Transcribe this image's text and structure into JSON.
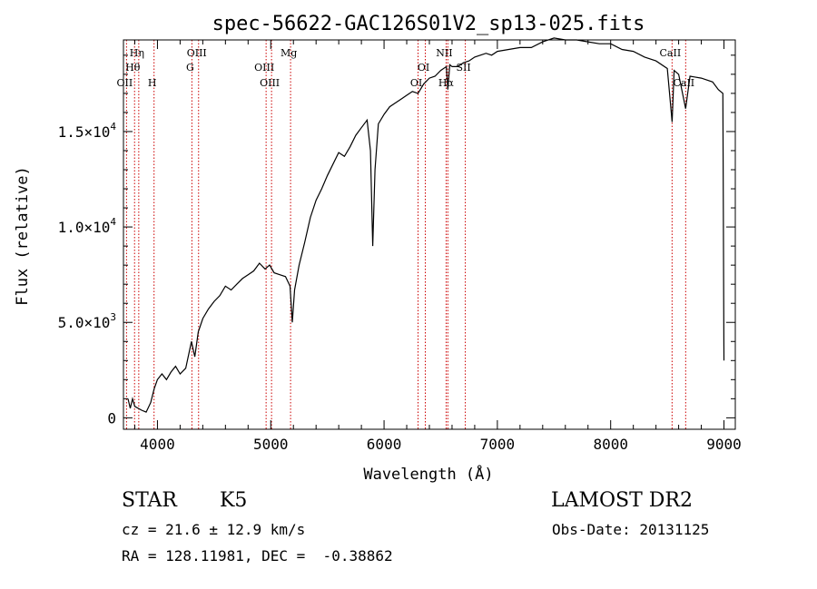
{
  "chart_data": {
    "type": "line",
    "title": "spec-56622-GAC126S01V2_sp13-025.fits",
    "xlabel": "Wavelength (Å)",
    "ylabel": "Flux (relative)",
    "xlim": [
      3700,
      9100
    ],
    "ylim": [
      -600,
      19800
    ],
    "x_ticks": [
      {
        "value": 4000,
        "label": "4000"
      },
      {
        "value": 5000,
        "label": "5000"
      },
      {
        "value": 6000,
        "label": "6000"
      },
      {
        "value": 7000,
        "label": "7000"
      },
      {
        "value": 8000,
        "label": "8000"
      },
      {
        "value": 9000,
        "label": "9000"
      }
    ],
    "y_ticks": [
      {
        "value": 0,
        "mantissa": "0",
        "exponent": ""
      },
      {
        "value": 5000,
        "mantissa": "5.0×10",
        "exponent": "3"
      },
      {
        "value": 10000,
        "mantissa": "1.0×10",
        "exponent": "4"
      },
      {
        "value": 15000,
        "mantissa": "1.5×10",
        "exponent": "4"
      }
    ],
    "grid": false,
    "series": [
      {
        "color": "#000000",
        "x": [
          3740,
          3760,
          3780,
          3800,
          3830,
          3860,
          3900,
          3940,
          3970,
          4000,
          4040,
          4080,
          4120,
          4160,
          4200,
          4250,
          4300,
          4330,
          4360,
          4400,
          4450,
          4500,
          4550,
          4600,
          4650,
          4700,
          4750,
          4800,
          4850,
          4900,
          4950,
          4990,
          5030,
          5080,
          5130,
          5170,
          5190,
          5210,
          5250,
          5300,
          5350,
          5400,
          5450,
          5500,
          5550,
          5600,
          5650,
          5700,
          5750,
          5800,
          5850,
          5880,
          5900,
          5920,
          5950,
          6000,
          6050,
          6100,
          6150,
          6200,
          6250,
          6300,
          6350,
          6400,
          6450,
          6500,
          6550,
          6563,
          6580,
          6600,
          6650,
          6700,
          6750,
          6800,
          6850,
          6900,
          6950,
          7000,
          7100,
          7200,
          7300,
          7400,
          7500,
          7600,
          7700,
          7800,
          7900,
          8000,
          8100,
          8200,
          8300,
          8400,
          8500,
          8542,
          8560,
          8600,
          8662,
          8700,
          8800,
          8900,
          8950,
          8990,
          9000
        ],
        "y": [
          1000,
          500,
          1000,
          600,
          500,
          400,
          300,
          800,
          1500,
          2000,
          2300,
          2000,
          2400,
          2700,
          2300,
          2600,
          4000,
          3200,
          4500,
          5200,
          5700,
          6100,
          6400,
          6900,
          6700,
          7000,
          7300,
          7500,
          7700,
          8100,
          7800,
          8000,
          7600,
          7500,
          7400,
          6900,
          5000,
          6700,
          8000,
          9200,
          10500,
          11400,
          12000,
          12700,
          13300,
          13900,
          13700,
          14200,
          14800,
          15200,
          15600,
          14000,
          9000,
          13000,
          15400,
          15900,
          16300,
          16500,
          16700,
          16900,
          17100,
          17000,
          17500,
          17800,
          17900,
          18200,
          18400,
          17200,
          18500,
          18400,
          18400,
          18600,
          18700,
          18900,
          19000,
          19100,
          19000,
          19200,
          19300,
          19400,
          19400,
          19700,
          19900,
          19800,
          19800,
          19700,
          19600,
          19600,
          19300,
          19200,
          18900,
          18700,
          18300,
          15500,
          18200,
          18000,
          16200,
          17900,
          17800,
          17600,
          17200,
          17000,
          3000
        ]
      }
    ],
    "lines": [
      {
        "name": "OII",
        "x": 3727,
        "label_row": 3
      },
      {
        "name": "Hη",
        "x": 3835,
        "label_row": 1
      },
      {
        "name": "Hθ",
        "x": 3798,
        "label_row": 2
      },
      {
        "name": "H",
        "x": 3970,
        "label_row": 3
      },
      {
        "name": "OIII",
        "x": 4363,
        "label_row": 1
      },
      {
        "name": "G",
        "x": 4304,
        "label_row": 2
      },
      {
        "name": "OIII",
        "x": 4959,
        "label_row": 2
      },
      {
        "name": "OIII",
        "x": 5007,
        "label_row": 3
      },
      {
        "name": "Mg",
        "x": 5175,
        "label_row": 1
      },
      {
        "name": "OI",
        "x": 6300,
        "label_row": 3
      },
      {
        "name": "OI",
        "x": 6364,
        "label_row": 2
      },
      {
        "name": "NII",
        "x": 6548,
        "label_row": 1
      },
      {
        "name": "Hα",
        "x": 6563,
        "label_row": 3
      },
      {
        "name": "SII",
        "x": 6717,
        "label_row": 2
      },
      {
        "name": "CaII",
        "x": 8542,
        "label_row": 1
      },
      {
        "name": "CaII",
        "x": 8662,
        "label_row": 3
      }
    ],
    "line_color": "#cc0000"
  },
  "info": {
    "object_class": "STAR",
    "subclass": "K5",
    "survey": "LAMOST DR2",
    "cz": "cz = 21.6 ± 12.9 km/s",
    "obs_date": "Obs-Date: 20131125",
    "coords": "RA = 128.11981, DEC =  -0.38862"
  }
}
